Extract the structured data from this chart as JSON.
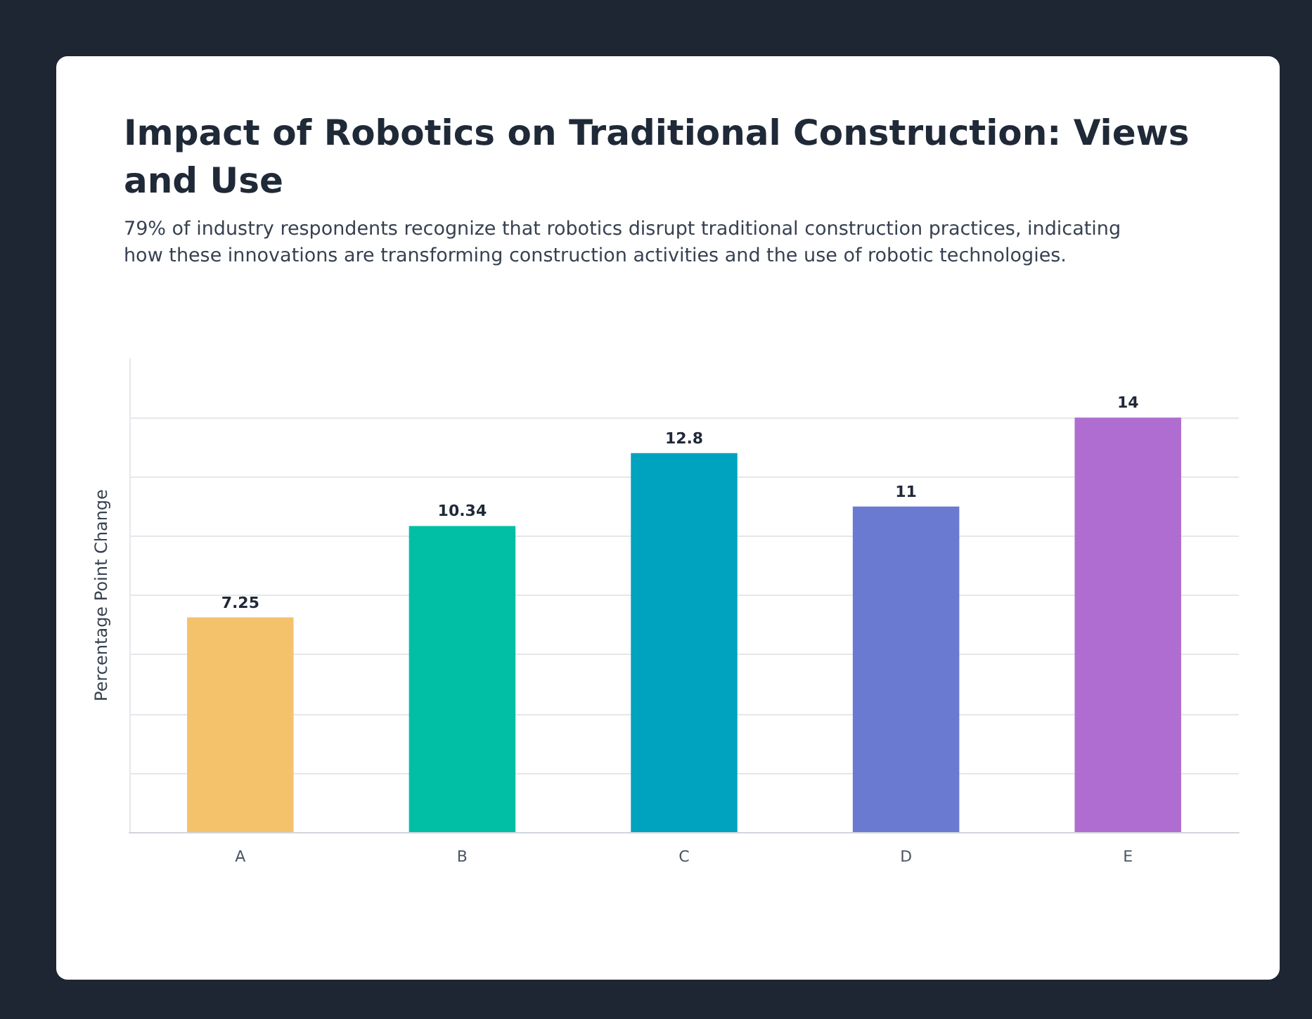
{
  "chart_data": {
    "type": "bar",
    "title": "Impact of Robotics on Traditional Construction: Views and Use",
    "subtitle": "79% of industry respondents recognize that robotics disrupt traditional construction practices, indicating how these innovations are transforming construction activities and the use of robotic technologies.",
    "ylabel": "Percentage Point Change",
    "categories": [
      "A",
      "B",
      "C",
      "D",
      "E"
    ],
    "values": [
      7.25,
      10.34,
      12.8,
      11,
      14
    ],
    "colors": [
      "#f4c26b",
      "#00bfa5",
      "#00a3bf",
      "#6b7ad1",
      "#b06dd1"
    ],
    "ylim": [
      0,
      16
    ],
    "yticks": [
      {
        "value": 0,
        "label": null
      },
      {
        "value": 2,
        "label": null
      },
      {
        "value": 4,
        "label": null
      },
      {
        "value": 6,
        "label": null
      },
      {
        "value": 8,
        "label": null
      },
      {
        "value": 10,
        "label": null
      },
      {
        "value": 12,
        "label": null
      },
      {
        "value": 14,
        "label": null
      }
    ],
    "tick_labels": "x",
    "grid": "y",
    "data_labels": true
  }
}
